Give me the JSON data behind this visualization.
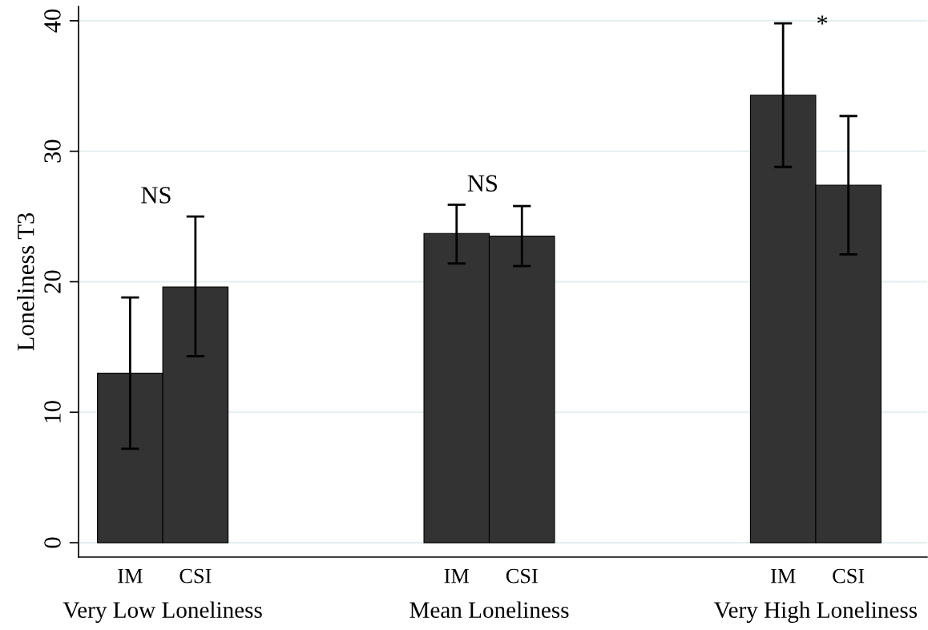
{
  "chart_data": {
    "type": "bar",
    "ylabel": "Loneliness T3",
    "categories": [
      "Very Low Loneliness",
      "Mean Loneliness",
      "Very High Loneliness"
    ],
    "series": [
      {
        "name": "IM",
        "color": "#333333",
        "values": [
          13.0,
          23.7,
          34.3
        ],
        "errors": [
          [
            7.2,
            18.8
          ],
          [
            21.4,
            25.9
          ],
          [
            28.8,
            39.8
          ]
        ]
      },
      {
        "name": "CSI",
        "color": "#333333",
        "values": [
          19.6,
          23.5,
          27.4
        ],
        "errors": [
          [
            14.3,
            25.0
          ],
          [
            21.2,
            25.8
          ],
          [
            22.1,
            32.7
          ]
        ]
      }
    ],
    "ylim": [
      -1.1,
      41.1
    ],
    "yticks": [
      0,
      10,
      20,
      30,
      40
    ],
    "grid": "y",
    "annotations": [
      "NS",
      "NS",
      "*"
    ]
  }
}
